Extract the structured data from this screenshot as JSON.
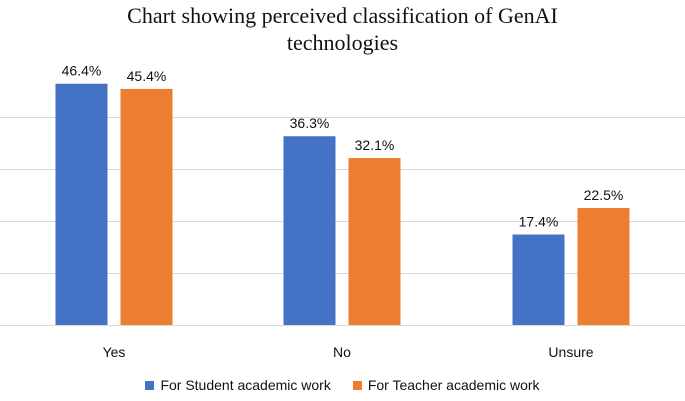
{
  "chart_data": {
    "type": "bar",
    "title": "Chart showing perceived classification of GenAI technologies",
    "title_lines": [
      "Chart showing perceived classification of GenAI",
      "technologies"
    ],
    "categories": [
      "Yes",
      "No",
      "Unsure"
    ],
    "series": [
      {
        "name": "For Student academic work",
        "values": [
          46.4,
          36.3,
          17.4
        ],
        "labels": [
          "46.4%",
          "36.3%",
          "17.4%"
        ],
        "color": "#4472C4"
      },
      {
        "name": "For Teacher academic work",
        "values": [
          45.4,
          32.1,
          22.5
        ],
        "labels": [
          "45.4%",
          "32.1%",
          "22.5%"
        ],
        "color": "#ED7D31"
      }
    ],
    "ylim": [
      0,
      50
    ],
    "y_gridlines": [
      0,
      10,
      20,
      30,
      40,
      50
    ],
    "grid": true,
    "legend_position": "bottom",
    "gridline_color": "#D9D9D9"
  }
}
